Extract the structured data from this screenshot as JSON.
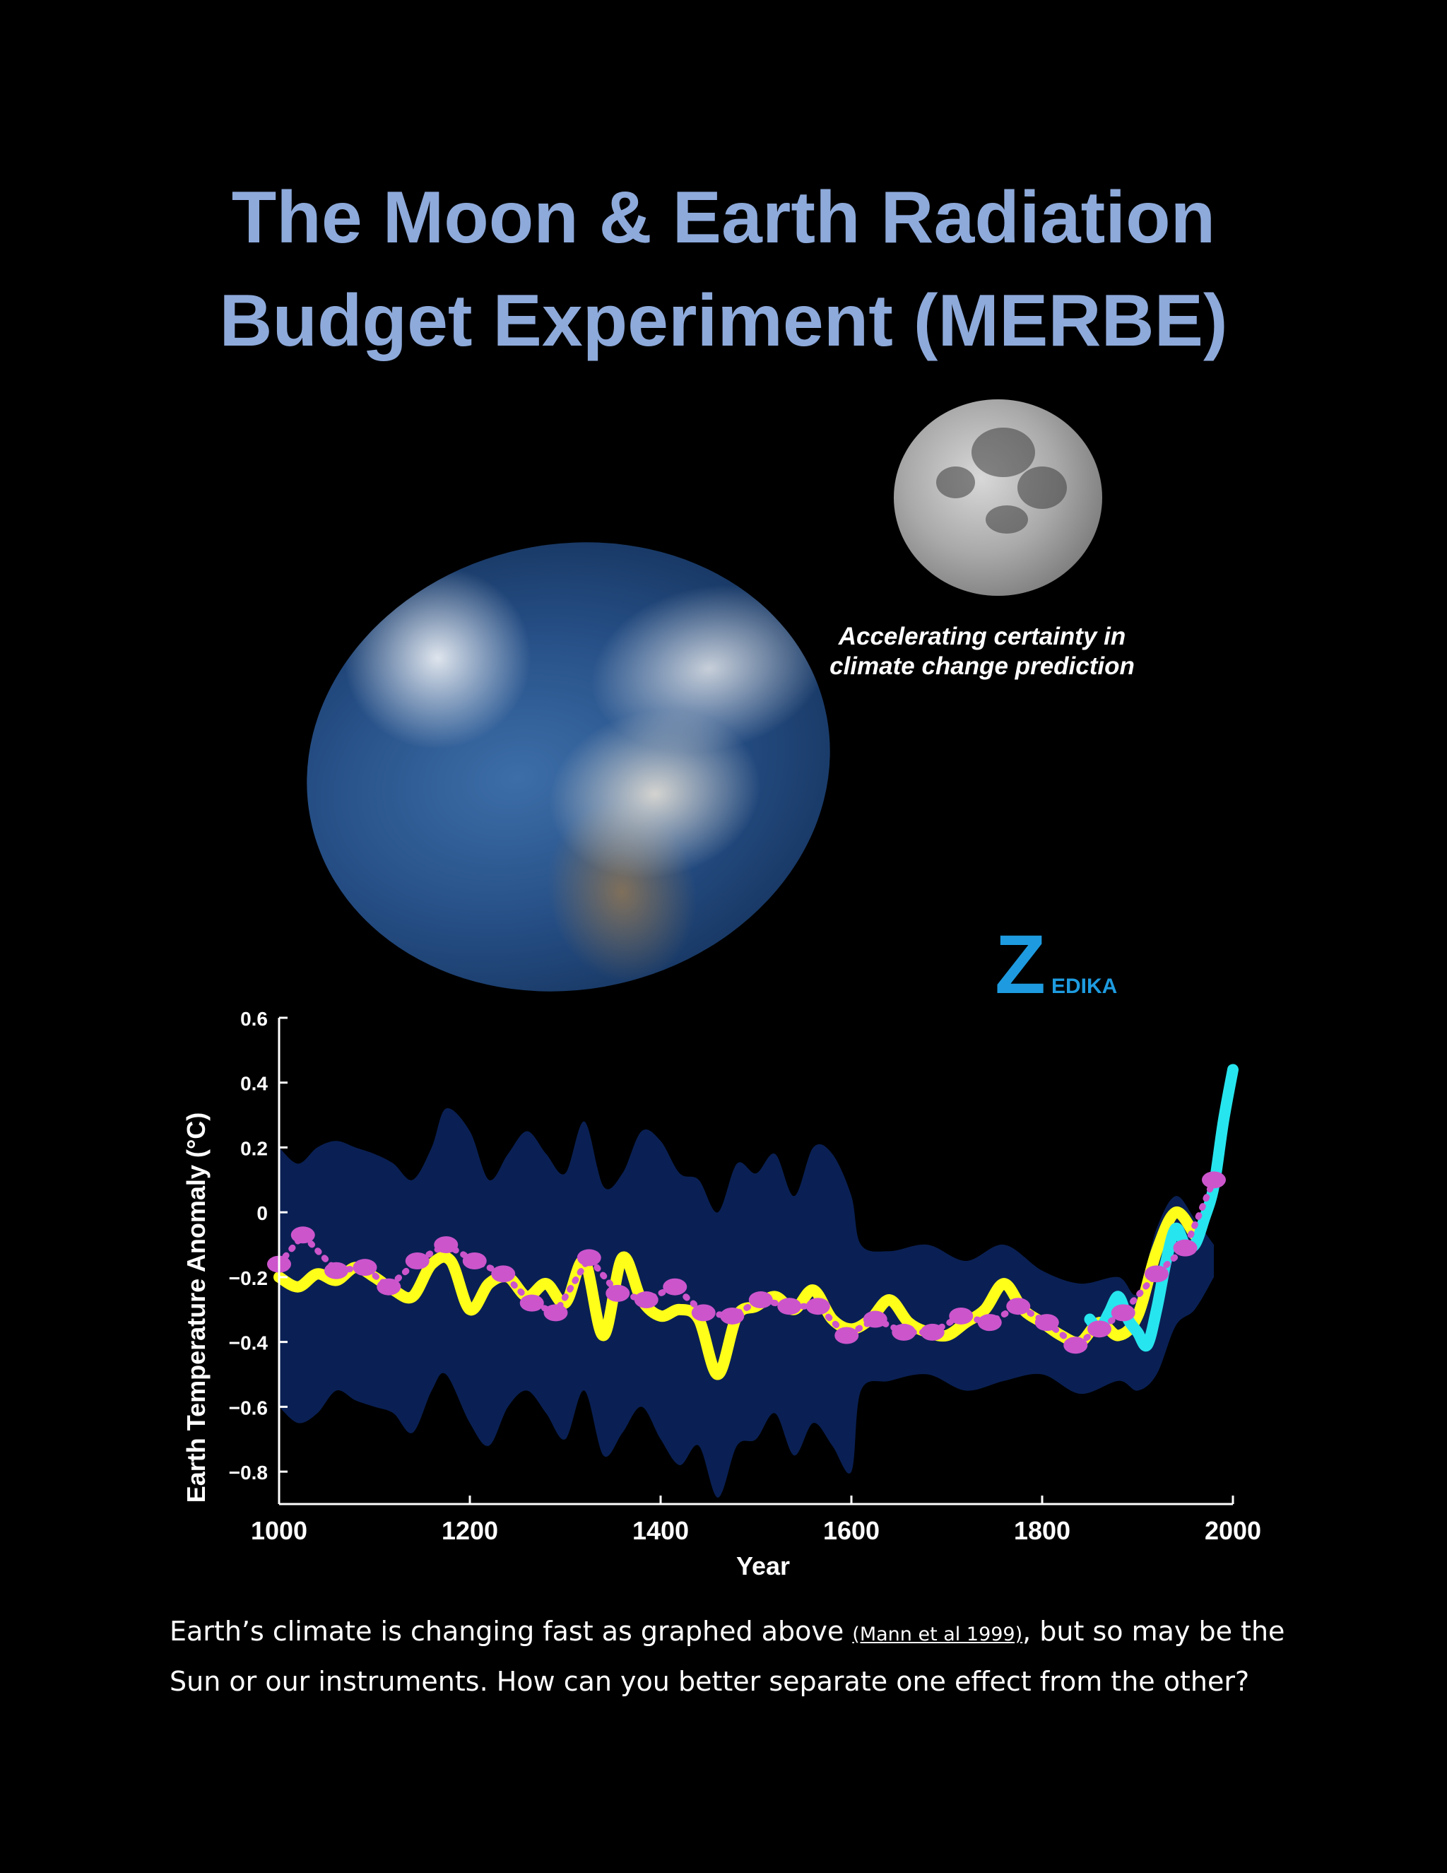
{
  "title": {
    "line1": "The Moon & Earth Radiation",
    "line2": "Budget Experiment (MERBE)"
  },
  "tagline": {
    "line1": "Accelerating certainty in",
    "line2": "climate change prediction"
  },
  "logo": {
    "letter": "Z",
    "rest": "EDIKA",
    "color": "#1e9be0"
  },
  "chart_data": {
    "type": "line",
    "title": "",
    "xlabel": "Year",
    "ylabel": "Earth Temperature Anomaly (°C)",
    "xlim": [
      1000,
      2000
    ],
    "ylim": [
      -0.9,
      0.6
    ],
    "x_ticks": [
      "1000",
      "1200",
      "1400",
      "1600",
      "1800",
      "2000"
    ],
    "y_ticks": [
      "0.6",
      "0.4",
      "0.2",
      "0",
      "−0.2",
      "−0.4",
      "−0.6",
      "−0.8"
    ],
    "x_tick_values": [
      1000,
      1200,
      1400,
      1600,
      1800,
      2000
    ],
    "y_tick_values": [
      0.6,
      0.4,
      0.2,
      0,
      -0.2,
      -0.4,
      -0.6,
      -0.8
    ],
    "grid": false,
    "uncertainty_band": {
      "x": [
        1000,
        1020,
        1040,
        1060,
        1080,
        1100,
        1120,
        1140,
        1160,
        1175,
        1200,
        1220,
        1240,
        1260,
        1280,
        1300,
        1320,
        1340,
        1360,
        1380,
        1400,
        1420,
        1440,
        1460,
        1480,
        1500,
        1520,
        1540,
        1560,
        1580,
        1600,
        1610,
        1640,
        1680,
        1720,
        1760,
        1800,
        1840,
        1880,
        1900,
        1920,
        1940,
        1960,
        1980
      ],
      "upper": [
        0.2,
        0.15,
        0.2,
        0.22,
        0.2,
        0.18,
        0.15,
        0.1,
        0.2,
        0.32,
        0.25,
        0.1,
        0.18,
        0.25,
        0.18,
        0.12,
        0.28,
        0.08,
        0.12,
        0.25,
        0.22,
        0.12,
        0.1,
        0.0,
        0.15,
        0.12,
        0.18,
        0.05,
        0.2,
        0.18,
        0.05,
        -0.1,
        -0.12,
        -0.1,
        -0.15,
        -0.1,
        -0.18,
        -0.22,
        -0.2,
        -0.25,
        -0.05,
        0.05,
        -0.02,
        -0.1
      ],
      "lower": [
        -0.6,
        -0.65,
        -0.62,
        -0.55,
        -0.58,
        -0.6,
        -0.62,
        -0.68,
        -0.55,
        -0.5,
        -0.65,
        -0.72,
        -0.6,
        -0.55,
        -0.62,
        -0.7,
        -0.55,
        -0.75,
        -0.68,
        -0.6,
        -0.7,
        -0.78,
        -0.72,
        -0.88,
        -0.72,
        -0.7,
        -0.62,
        -0.75,
        -0.65,
        -0.72,
        -0.8,
        -0.55,
        -0.52,
        -0.5,
        -0.55,
        -0.52,
        -0.5,
        -0.56,
        -0.52,
        -0.55,
        -0.5,
        -0.35,
        -0.3,
        -0.2
      ]
    },
    "series": [
      {
        "color": "#ffff1a",
        "style": "thick-line",
        "x": [
          1000,
          1020,
          1040,
          1060,
          1080,
          1100,
          1120,
          1140,
          1160,
          1180,
          1200,
          1220,
          1240,
          1260,
          1280,
          1300,
          1320,
          1340,
          1360,
          1380,
          1400,
          1420,
          1440,
          1460,
          1480,
          1500,
          1520,
          1540,
          1560,
          1580,
          1600,
          1620,
          1640,
          1660,
          1680,
          1700,
          1720,
          1740,
          1760,
          1780,
          1800,
          1820,
          1840,
          1860,
          1880,
          1900,
          1920,
          1940,
          1960
        ],
        "values": [
          -0.2,
          -0.23,
          -0.19,
          -0.21,
          -0.17,
          -0.2,
          -0.24,
          -0.26,
          -0.16,
          -0.15,
          -0.3,
          -0.22,
          -0.2,
          -0.26,
          -0.22,
          -0.28,
          -0.15,
          -0.38,
          -0.14,
          -0.27,
          -0.32,
          -0.3,
          -0.33,
          -0.5,
          -0.32,
          -0.29,
          -0.26,
          -0.3,
          -0.24,
          -0.33,
          -0.36,
          -0.33,
          -0.27,
          -0.34,
          -0.37,
          -0.38,
          -0.34,
          -0.3,
          -0.22,
          -0.3,
          -0.34,
          -0.38,
          -0.4,
          -0.34,
          -0.38,
          -0.32,
          -0.12,
          0.0,
          -0.07
        ]
      },
      {
        "color": "#27e5ee",
        "style": "thick-line",
        "x": [
          1850,
          1860,
          1870,
          1880,
          1890,
          1900,
          1910,
          1920,
          1930,
          1940,
          1950,
          1960,
          1970,
          1980,
          1990,
          2000
        ],
        "values": [
          -0.33,
          -0.36,
          -0.31,
          -0.26,
          -0.33,
          -0.37,
          -0.41,
          -0.3,
          -0.15,
          -0.05,
          -0.1,
          -0.1,
          -0.02,
          0.08,
          0.28,
          0.44
        ]
      },
      {
        "color": "#cc55cc",
        "style": "dotted-markers",
        "x": [
          1000,
          1025,
          1060,
          1090,
          1115,
          1145,
          1175,
          1205,
          1235,
          1265,
          1290,
          1325,
          1355,
          1385,
          1415,
          1445,
          1475,
          1505,
          1535,
          1565,
          1595,
          1625,
          1655,
          1685,
          1715,
          1745,
          1775,
          1805,
          1835,
          1860,
          1885,
          1920,
          1950,
          1980
        ],
        "values": [
          -0.16,
          -0.07,
          -0.18,
          -0.17,
          -0.23,
          -0.15,
          -0.1,
          -0.15,
          -0.19,
          -0.28,
          -0.31,
          -0.14,
          -0.25,
          -0.27,
          -0.23,
          -0.31,
          -0.32,
          -0.27,
          -0.29,
          -0.29,
          -0.38,
          -0.33,
          -0.37,
          -0.37,
          -0.32,
          -0.34,
          -0.29,
          -0.34,
          -0.41,
          -0.36,
          -0.31,
          -0.19,
          -0.11,
          0.1
        ]
      }
    ]
  },
  "caption": {
    "part1": "Earth’s climate is changing fast as graphed above ",
    "cite": "(Mann et al 1999)",
    "part2": ", but so may be the Sun or our instruments. How can you better separate one effect from the other?"
  }
}
